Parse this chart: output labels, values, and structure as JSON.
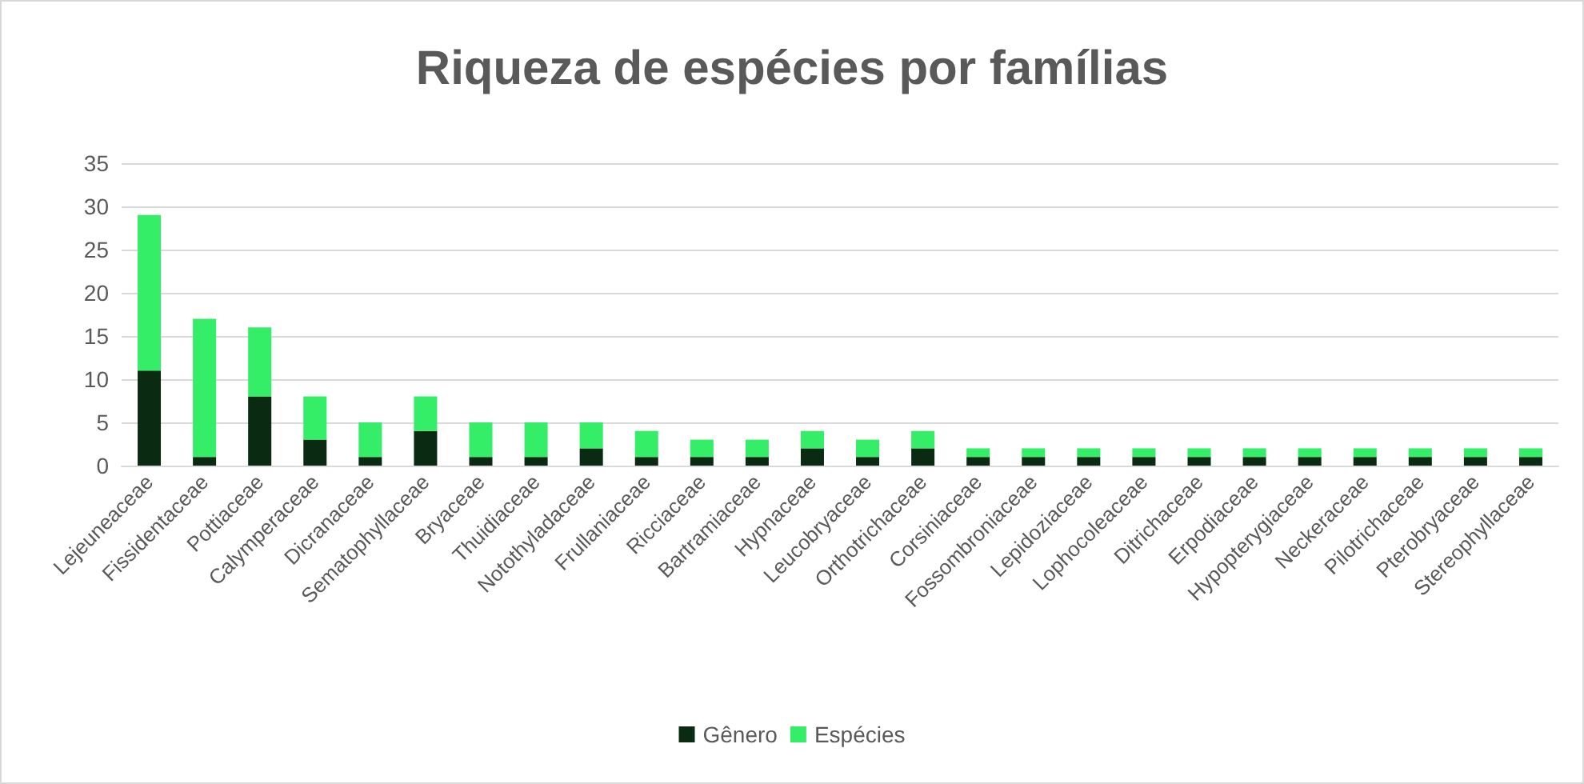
{
  "chart_data": {
    "type": "bar",
    "title": "Riqueza de espécies por famílias",
    "stacked": true,
    "grid": "y",
    "legend": "bottom",
    "ylim": [
      0,
      35
    ],
    "yticks": [
      0,
      5,
      10,
      15,
      20,
      25,
      30,
      35
    ],
    "categories": [
      "Lejeuneaceae",
      "Fissidentaceae",
      "Pottiaceae",
      "Calymperaceae",
      "Dicranaceae",
      "Sematophyllaceae",
      "Bryaceae",
      "Thuidiaceae",
      "Notothyladaceae",
      "Frullaniaceae",
      "Ricciaceae",
      "Bartramiaceae",
      "Hypnaceae",
      "Leucobryaceae",
      "Orthotrichaceae",
      "Corsiniaceae",
      "Fossombroniaceae",
      "Lepidoziaceae",
      "Lophocoleaceae",
      "Ditrichaceae",
      "Erpodiaceae",
      "Hypopterygiaceae",
      "Neckeraceae",
      "Pilotrichaceae",
      "Pterobryaceae",
      "Stereophyllaceae"
    ],
    "series": [
      {
        "name": "Gênero",
        "color": "#0b2a12",
        "values": [
          11,
          1,
          8,
          3,
          1,
          4,
          1,
          1,
          2,
          1,
          1,
          1,
          2,
          1,
          2,
          1,
          1,
          1,
          1,
          1,
          1,
          1,
          1,
          1,
          1,
          1
        ]
      },
      {
        "name": "Espécies",
        "color": "#33ee66",
        "values": [
          18,
          16,
          8,
          5,
          4,
          4,
          4,
          4,
          3,
          3,
          2,
          2,
          2,
          2,
          2,
          1,
          1,
          1,
          1,
          1,
          1,
          1,
          1,
          1,
          1,
          1
        ]
      }
    ]
  }
}
